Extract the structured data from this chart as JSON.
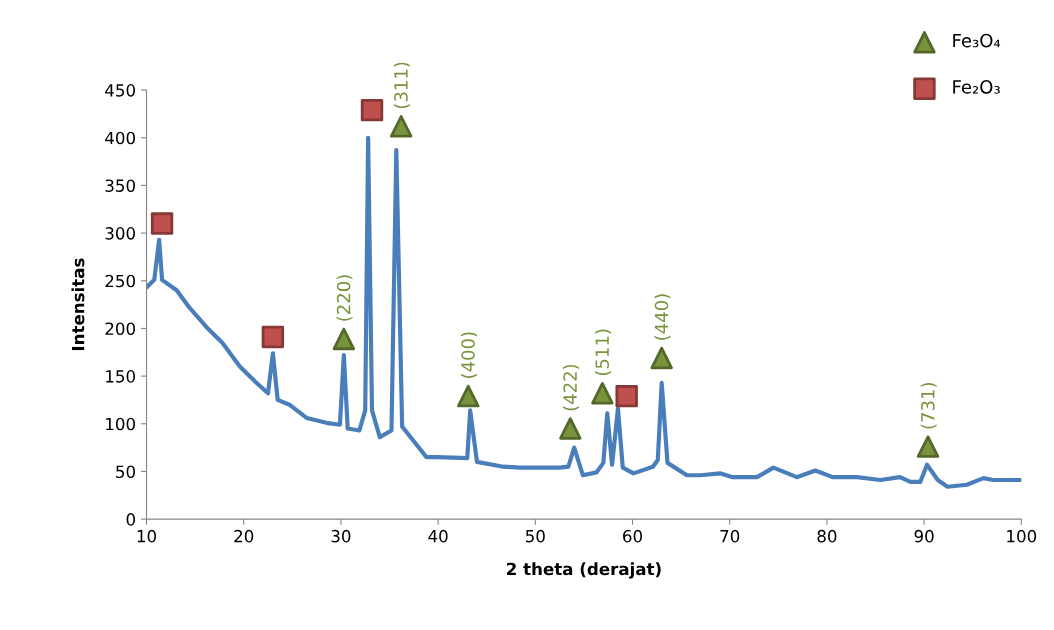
{
  "chart_data": {
    "type": "line",
    "xlabel": "2 theta (derajat)",
    "ylabel": "Intensitas",
    "xlim": [
      10,
      100
    ],
    "xticks": [
      10,
      20,
      30,
      40,
      50,
      60,
      70,
      80,
      90,
      100
    ],
    "ylim": [
      0,
      450
    ],
    "yticks": [
      0,
      50,
      100,
      150,
      200,
      250,
      300,
      350,
      400,
      450
    ],
    "grid": false,
    "legend": "top right",
    "series": [
      {
        "color": "#4a7ebb",
        "x": [
          10,
          10.8,
          11.3,
          11.6,
          13.1,
          14.4,
          16.2,
          17.8,
          19.6,
          21.3,
          22.5,
          23.0,
          23.5,
          24.7,
          26.5,
          28.5,
          29.9,
          30.3,
          30.7,
          31.9,
          32.5,
          32.8,
          33.2,
          34.0,
          35.2,
          35.7,
          36.3,
          37.4,
          38.8,
          39.9,
          43.0,
          43.3,
          44.0,
          46.7,
          48.4,
          52.5,
          53.4,
          54.0,
          54.9,
          56.3,
          57.0,
          57.4,
          57.9,
          58.5,
          59.0,
          60.1,
          62.1,
          62.6,
          63.0,
          63.6,
          65.6,
          67.0,
          69.0,
          70.3,
          72.8,
          74.5,
          76.9,
          78.8,
          80.6,
          83.1,
          85.5,
          87.5,
          88.6,
          89.6,
          90.3,
          91.4,
          92.4,
          94.4,
          96.1,
          97.1,
          99.9
        ],
        "values": [
          243,
          251,
          293,
          251,
          240,
          222,
          201,
          185,
          160,
          143,
          132,
          174,
          125,
          120,
          106,
          101,
          99,
          172,
          95,
          93,
          114,
          400,
          114,
          86,
          93,
          387,
          97,
          83,
          65,
          65,
          64,
          114,
          60,
          55,
          54,
          54,
          55,
          75,
          46,
          49,
          59,
          111,
          57,
          116,
          54,
          48,
          55,
          62,
          143,
          59,
          46,
          46,
          48,
          44,
          44,
          54,
          44,
          51,
          44,
          44,
          41,
          44,
          39,
          39,
          57,
          41,
          34,
          36,
          43,
          41,
          41
        ]
      },
      {
        "type": "scatter",
        "name": "Fe₃O₄",
        "marker": "triangle",
        "color": "#77933c",
        "x": [
          30.3,
          36.2,
          43.1,
          53.6,
          56.9,
          63.0,
          90.4
        ],
        "values": [
          189,
          412,
          129,
          95,
          132,
          169,
          76
        ]
      },
      {
        "type": "scatter",
        "name": "Fe₂O₃",
        "marker": "square",
        "color": "#c0504d",
        "x": [
          11.6,
          23.0,
          33.2,
          59.4
        ],
        "values": [
          310,
          191,
          429,
          129
        ]
      }
    ],
    "annotations": [
      {
        "text": "(220)",
        "x": 30.3,
        "y": 189
      },
      {
        "text": "(311)",
        "x": 36.2,
        "y": 412
      },
      {
        "text": "(400)",
        "x": 43.1,
        "y": 129
      },
      {
        "text": "(422)",
        "x": 53.6,
        "y": 95
      },
      {
        "text": "(511)",
        "x": 56.9,
        "y": 132
      },
      {
        "text": "(440)",
        "x": 63.0,
        "y": 169
      },
      {
        "text": "(731)",
        "x": 90.4,
        "y": 76
      }
    ]
  }
}
